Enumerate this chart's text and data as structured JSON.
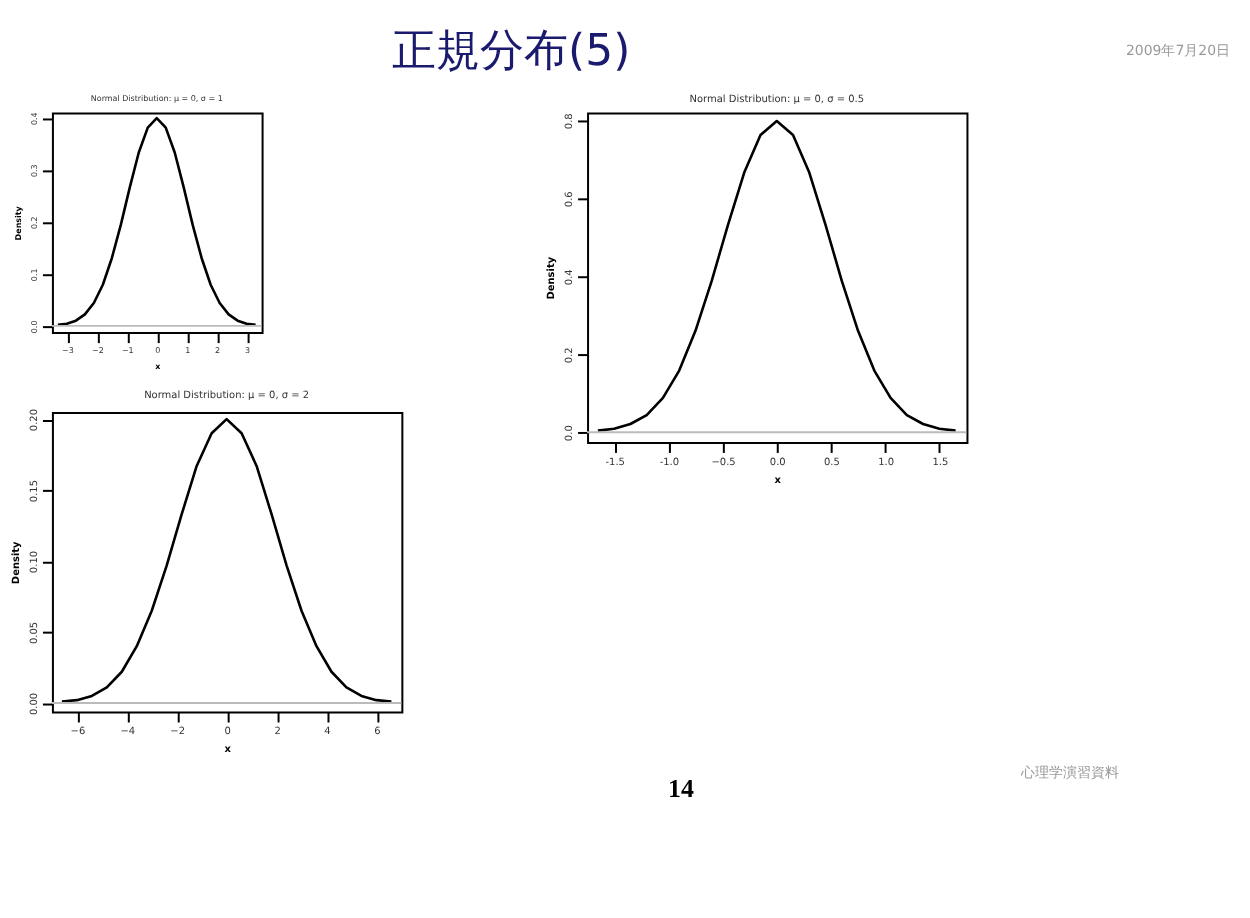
{
  "chart_data": [
    {
      "type": "other",
      "title": "正規分布(5)",
      "annotations": [
        "2009年7月20日",
        "心理学演習資料",
        "14"
      ]
    },
    {
      "type": "line",
      "title": "Normal Distribution: μ = 0, σ = 1",
      "xlabel": "x",
      "ylabel": "Density",
      "marker": "none",
      "x": [
        -3.3,
        -3.0,
        -2.7,
        -2.4,
        -2.1,
        -1.8,
        -1.5,
        -1.2,
        -0.9,
        -0.6,
        -0.3,
        0,
        0.3,
        0.6,
        0.9,
        1.2,
        1.5,
        1.8,
        2.1,
        2.4,
        2.7,
        3.0,
        3.3
      ],
      "series": [
        {
          "color": "#000000",
          "values": [
            0.002,
            0.004,
            0.01,
            0.022,
            0.044,
            0.079,
            0.13,
            0.194,
            0.266,
            0.333,
            0.381,
            0.399,
            0.381,
            0.333,
            0.266,
            0.194,
            0.13,
            0.079,
            0.044,
            0.022,
            0.01,
            0.004,
            0.002
          ]
        }
      ],
      "xlim": [
        -3.5,
        3.5
      ],
      "xticks": [
        -3,
        -2,
        -1,
        0,
        1,
        2,
        3
      ],
      "ylim": [
        -0.012,
        0.41
      ],
      "yticks": [
        {
          "value": 0,
          "label": "0.0"
        },
        0.1,
        0.2,
        0.3,
        0.4
      ],
      "ref_lines": [
        {
          "axis": "y",
          "value": 0,
          "color": "#bbbbbb"
        }
      ]
    },
    {
      "type": "line",
      "title": "Normal Distribution: μ = 0, σ = 0.5",
      "xlabel": "x",
      "ylabel": "Density",
      "marker": "none",
      "x": [
        -1.65,
        -1.5,
        -1.35,
        -1.2,
        -1.05,
        -0.9,
        -0.75,
        -0.6,
        -0.45,
        -0.3,
        -0.15,
        0,
        0.15,
        0.3,
        0.45,
        0.6,
        0.75,
        0.9,
        1.05,
        1.2,
        1.35,
        1.5,
        1.65
      ],
      "series": [
        {
          "color": "#000000",
          "values": [
            0.004,
            0.009,
            0.021,
            0.044,
            0.088,
            0.158,
            0.26,
            0.388,
            0.532,
            0.666,
            0.762,
            0.798,
            0.762,
            0.666,
            0.532,
            0.388,
            0.26,
            0.158,
            0.088,
            0.044,
            0.021,
            0.009,
            0.004
          ]
        }
      ],
      "xlim": [
        -1.75,
        1.75
      ],
      "xticks": [
        {
          "value": -1.5,
          "label": "-1.5"
        },
        {
          "value": -1,
          "label": "-1.0"
        },
        -0.5,
        {
          "value": 0,
          "label": "0.0"
        },
        0.5,
        {
          "value": 1,
          "label": "1.0"
        },
        1.5
      ],
      "ylim": [
        -0.025,
        0.82
      ],
      "yticks": [
        {
          "value": 0,
          "label": "0.0"
        },
        0.2,
        0.4,
        0.6,
        0.8
      ],
      "ref_lines": [
        {
          "axis": "y",
          "value": 0,
          "color": "#bbbbbb"
        }
      ]
    },
    {
      "type": "line",
      "title": "Normal Distribution: μ = 0, σ = 2",
      "xlabel": "x",
      "ylabel": "Density",
      "marker": "none",
      "x": [
        -6.6,
        -6.0,
        -5.4,
        -4.8,
        -4.2,
        -3.6,
        -3.0,
        -2.4,
        -1.8,
        -1.2,
        -0.6,
        0,
        0.6,
        1.2,
        1.8,
        2.4,
        3.0,
        3.6,
        4.2,
        4.8,
        5.4,
        6.0,
        6.6
      ],
      "series": [
        {
          "color": "#000000",
          "values": [
            0.001,
            0.002,
            0.005,
            0.011,
            0.022,
            0.04,
            0.065,
            0.097,
            0.133,
            0.167,
            0.19,
            0.2,
            0.19,
            0.167,
            0.133,
            0.097,
            0.065,
            0.04,
            0.022,
            0.011,
            0.005,
            0.002,
            0.001
          ]
        }
      ],
      "xlim": [
        -7,
        7
      ],
      "xticks": [
        -6,
        -4,
        -2,
        0,
        2,
        4,
        6
      ],
      "ylim": [
        -0.006,
        0.205
      ],
      "yticks": [
        {
          "value": 0,
          "label": "0.00"
        },
        0.05,
        {
          "value": 0.1,
          "label": "0.10"
        },
        0.15,
        {
          "value": 0.2,
          "label": "0.20"
        }
      ],
      "ref_lines": [
        {
          "axis": "y",
          "value": 0,
          "color": "#bbbbbb"
        }
      ]
    }
  ]
}
